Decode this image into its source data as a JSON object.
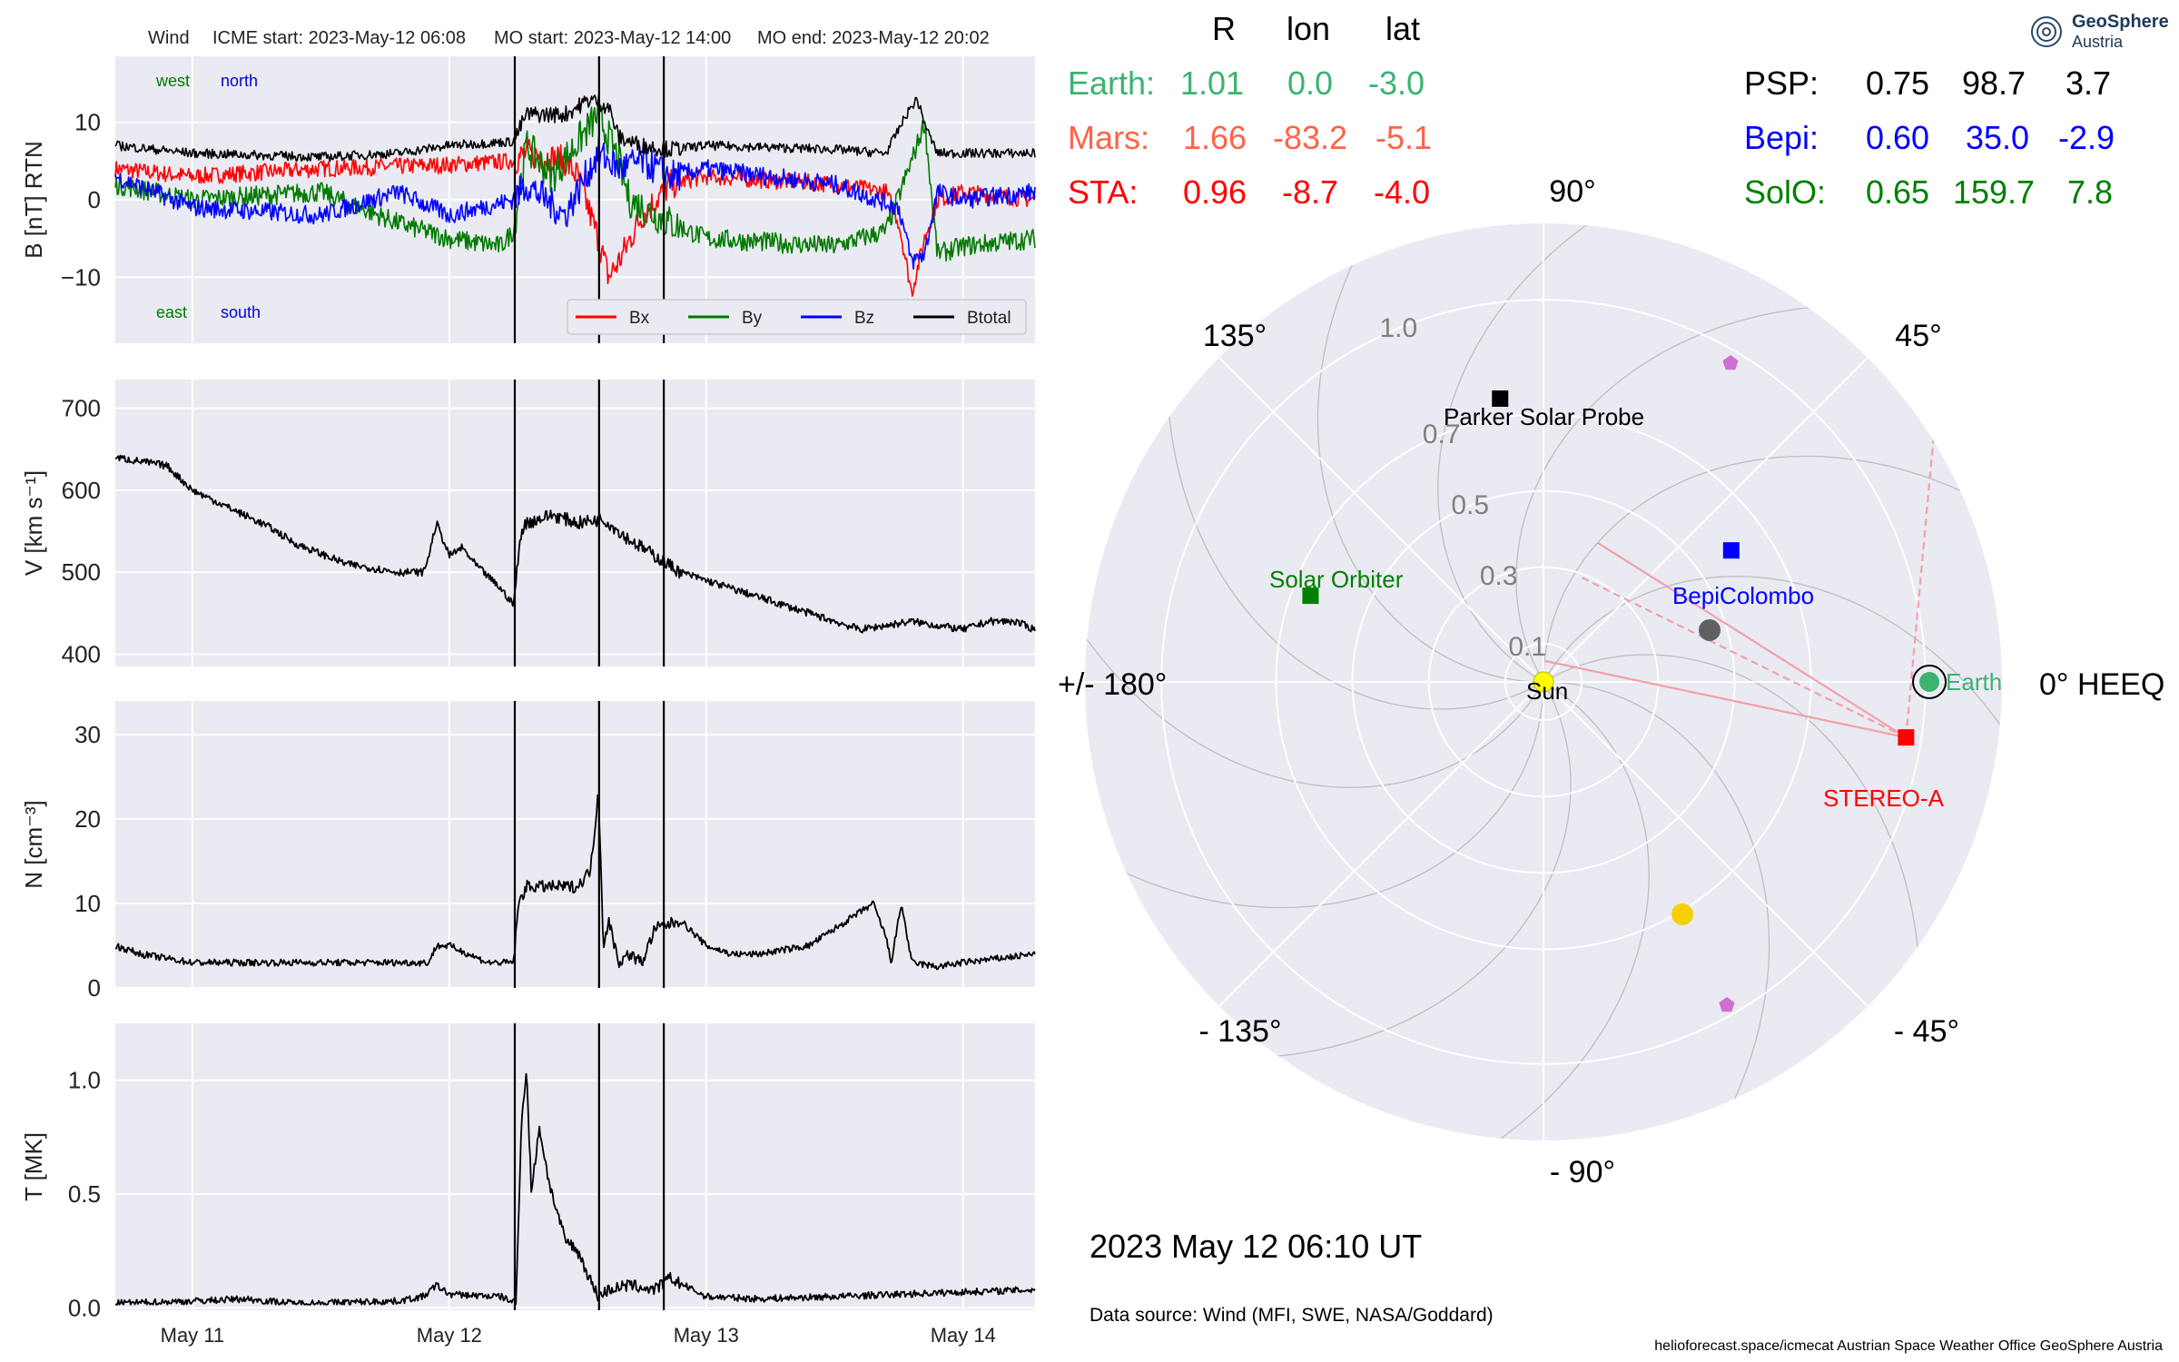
{
  "header": {
    "spacecraft": "Wind",
    "icme_start": "ICME start: 2023-May-12 06:08",
    "mo_start": "MO start: 2023-May-12 14:00",
    "mo_end": "MO end: 2023-May-12 20:02"
  },
  "colors": {
    "bx": "#ff0000",
    "by": "#007a00",
    "bz": "#0000ff",
    "btotal": "#000000",
    "earth": "#3cb371",
    "mars": "#ff6347",
    "sta": "#ff0000",
    "psp": "#000000",
    "bepi": "#0000ff",
    "solo": "#008000",
    "panel_bg": "#eaeaf2"
  },
  "chart_data": [
    {
      "type": "line",
      "panel": "magnetic field",
      "ylabel": "B [nT] RTN",
      "ylim": [
        -18.5,
        18.5
      ],
      "yticks": [
        "10",
        "0",
        "−10"
      ],
      "annotations": {
        "west": "west",
        "north": "north",
        "east": "east",
        "south": "south"
      },
      "legend": {
        "placement": "lower-right",
        "entries": [
          "Bx",
          "By",
          "Bz",
          "Btotal"
        ]
      },
      "x_range_days": [
        10.7,
        14.28
      ],
      "series": [
        {
          "name": "Bx",
          "x": [
            10.7,
            11.0,
            11.5,
            12.0,
            12.25,
            12.3,
            12.45,
            12.5,
            12.58,
            12.62,
            12.66,
            12.75,
            12.86,
            13.0,
            13.5,
            13.7,
            13.75,
            13.8,
            13.85,
            13.9,
            14.0,
            14.28
          ],
          "y": [
            4,
            3,
            4,
            4.5,
            5,
            6,
            5,
            3,
            -5,
            -10,
            -8,
            -2,
            2,
            3,
            2,
            1,
            -3,
            -12,
            -5,
            0,
            1,
            0
          ]
        },
        {
          "name": "By",
          "x": [
            10.7,
            11.0,
            11.5,
            11.8,
            12.0,
            12.2,
            12.25,
            12.3,
            12.4,
            12.58,
            12.66,
            12.7,
            12.86,
            13.0,
            13.5,
            13.7,
            13.8,
            13.85,
            13.9,
            14.0,
            14.28
          ],
          "y": [
            2,
            0,
            1,
            -3,
            -5,
            -6,
            -4,
            7,
            3,
            11,
            5,
            0,
            -3,
            -5,
            -6,
            -4,
            5,
            10,
            -7,
            -6,
            -5
          ]
        },
        {
          "name": "Bz",
          "x": [
            10.7,
            11.0,
            11.5,
            11.8,
            12.0,
            12.25,
            12.3,
            12.45,
            12.58,
            12.66,
            12.75,
            12.86,
            13.0,
            13.5,
            13.75,
            13.8,
            13.85,
            13.9,
            14.0,
            14.28
          ],
          "y": [
            3,
            -1,
            -2,
            1,
            -2,
            0,
            2,
            -2,
            6,
            4,
            5,
            3,
            4,
            2,
            -1,
            -8,
            -7,
            1,
            0,
            1
          ]
        },
        {
          "name": "Btotal",
          "x": [
            10.7,
            11.0,
            11.5,
            11.8,
            12.0,
            12.25,
            12.3,
            12.45,
            12.55,
            12.62,
            12.66,
            12.75,
            12.86,
            13.0,
            13.5,
            13.7,
            13.78,
            13.82,
            13.86,
            13.9,
            14.0,
            14.28
          ],
          "y": [
            7,
            6,
            5.5,
            6,
            7,
            7.5,
            11,
            11,
            13,
            12,
            8,
            7,
            6.5,
            7,
            6.5,
            6,
            11,
            13,
            9,
            6,
            6,
            6
          ]
        }
      ]
    },
    {
      "type": "line",
      "panel": "speed",
      "ylabel": "V [km s⁻¹]",
      "ylim": [
        385,
        735
      ],
      "yticks": [
        "700",
        "600",
        "500",
        "400"
      ],
      "series": [
        {
          "name": "V",
          "x": [
            10.7,
            10.9,
            11.0,
            11.1,
            11.2,
            11.3,
            11.4,
            11.6,
            11.8,
            11.9,
            11.92,
            11.95,
            12.0,
            12.05,
            12.1,
            12.2,
            12.25,
            12.28,
            12.3,
            12.4,
            12.5,
            12.6,
            12.7,
            12.8,
            12.9,
            13.0,
            13.2,
            13.4,
            13.6,
            13.8,
            14.0,
            14.1,
            14.2,
            14.28
          ],
          "y": [
            640,
            630,
            600,
            585,
            570,
            555,
            535,
            510,
            500,
            500,
            520,
            560,
            520,
            530,
            510,
            480,
            460,
            550,
            560,
            570,
            560,
            565,
            540,
            520,
            500,
            490,
            470,
            450,
            430,
            440,
            430,
            440,
            440,
            430
          ]
        }
      ]
    },
    {
      "type": "line",
      "panel": "density",
      "ylabel": "N [cm⁻³]",
      "ylim": [
        0,
        34
      ],
      "yticks": [
        "30",
        "20",
        "10",
        "0"
      ],
      "series": [
        {
          "name": "N",
          "x": [
            10.7,
            10.8,
            11.0,
            11.2,
            11.5,
            11.8,
            11.92,
            11.95,
            12.0,
            12.15,
            12.25,
            12.27,
            12.3,
            12.4,
            12.5,
            12.55,
            12.57,
            12.58,
            12.6,
            12.62,
            12.66,
            12.7,
            12.75,
            12.8,
            12.9,
            13.0,
            13.1,
            13.2,
            13.4,
            13.6,
            13.65,
            13.7,
            13.72,
            13.76,
            13.8,
            13.9,
            14.0,
            14.28
          ],
          "y": [
            5,
            4,
            3,
            3,
            3,
            3,
            3,
            5,
            5,
            3,
            3,
            10,
            12,
            12,
            12,
            14,
            20,
            24,
            5,
            8,
            3,
            4,
            3,
            7,
            8,
            5,
            4,
            4,
            5,
            9,
            10,
            6,
            3,
            10,
            3,
            2.5,
            3,
            4
          ]
        }
      ]
    },
    {
      "type": "line",
      "panel": "temperature",
      "ylabel": "T [MK]",
      "ylim": [
        -0.01,
        1.25
      ],
      "yticks": [
        "1.0",
        "0.5",
        "0.0"
      ],
      "xticks": [
        "May 11",
        "May 12",
        "May 13",
        "May 14"
      ],
      "series": [
        {
          "name": "T",
          "x": [
            10.7,
            11.0,
            11.2,
            11.4,
            11.8,
            11.9,
            11.95,
            12.0,
            12.2,
            12.26,
            12.28,
            12.3,
            12.32,
            12.35,
            12.38,
            12.4,
            12.45,
            12.5,
            12.55,
            12.58,
            12.62,
            12.7,
            12.8,
            12.86,
            13.0,
            13.2,
            13.5,
            14.0,
            14.28
          ],
          "y": [
            0.02,
            0.03,
            0.04,
            0.02,
            0.03,
            0.05,
            0.1,
            0.06,
            0.05,
            0.02,
            0.8,
            1.05,
            0.5,
            0.8,
            0.6,
            0.5,
            0.3,
            0.25,
            0.12,
            0.05,
            0.08,
            0.1,
            0.08,
            0.13,
            0.05,
            0.04,
            0.05,
            0.07,
            0.08
          ]
        }
      ]
    },
    {
      "type": "scatter",
      "panel": "spacecraft positions (polar, HEEQ)",
      "date": "2023 May 12  06:10 UT",
      "angle_labels": {
        "a90": "90°",
        "a45": "45°",
        "a135": "135°",
        "a180": "+/- 180°",
        "a0": "0° HEEQ",
        "am45": "- 45°",
        "am90": "- 90°",
        "am135": "- 135°"
      },
      "radial_ticks": [
        "1.0",
        "0.7",
        "0.5",
        "0.3",
        "0.1"
      ],
      "radial_tick_values": [
        1.0,
        0.7,
        0.5,
        0.3,
        0.1
      ],
      "points": [
        {
          "name": "Earth",
          "r": 1.01,
          "lon": 0.0
        },
        {
          "name": "STEREO-A",
          "r": 0.96,
          "lon": -8.7
        },
        {
          "name": "BepiColombo",
          "r": 0.6,
          "lon": 35.0
        },
        {
          "name": "Parker Solar Probe",
          "r": 0.75,
          "lon": 98.7
        },
        {
          "name": "Solar Orbiter",
          "r": 0.65,
          "lon": 159.7
        },
        {
          "name": "Mars",
          "r": 1.66,
          "lon": -83.2
        },
        {
          "name": "Sun",
          "r": 0.0,
          "lon": 0.0
        }
      ],
      "labels": {
        "earth": "Earth",
        "sta": "STEREO-A",
        "bepi": "BepiColombo",
        "psp": "Parker Solar Probe",
        "solo": "Solar Orbiter",
        "sun": "Sun"
      }
    },
    {
      "type": "table",
      "panel": "positions table",
      "columns": [
        "R",
        "lon",
        "lat"
      ],
      "rows": [
        {
          "name": "Earth:",
          "r": "1.01",
          "lon": "0.0",
          "lat": "-3.0"
        },
        {
          "name": "Mars:",
          "r": "1.66",
          "lon": "-83.2",
          "lat": "-5.1"
        },
        {
          "name": "STA:",
          "r": "0.96",
          "lon": "-8.7",
          "lat": "-4.0"
        },
        {
          "name": "PSP:",
          "r": "0.75",
          "lon": "98.7",
          "lat": "3.7"
        },
        {
          "name": "Bepi:",
          "r": "0.60",
          "lon": "35.0",
          "lat": "-2.9"
        },
        {
          "name": "SolO:",
          "r": "0.65",
          "lon": "159.7",
          "lat": "7.8"
        }
      ]
    }
  ],
  "footer": {
    "data_source": "Data source: Wind (MFI, SWE, NASA/Goddard)",
    "credits": "helioforecast.space/icmecat   Austrian Space Weather Office   GeoSphere Austria",
    "logo_line1": "GeoSphere",
    "logo_line2": "Austria"
  }
}
